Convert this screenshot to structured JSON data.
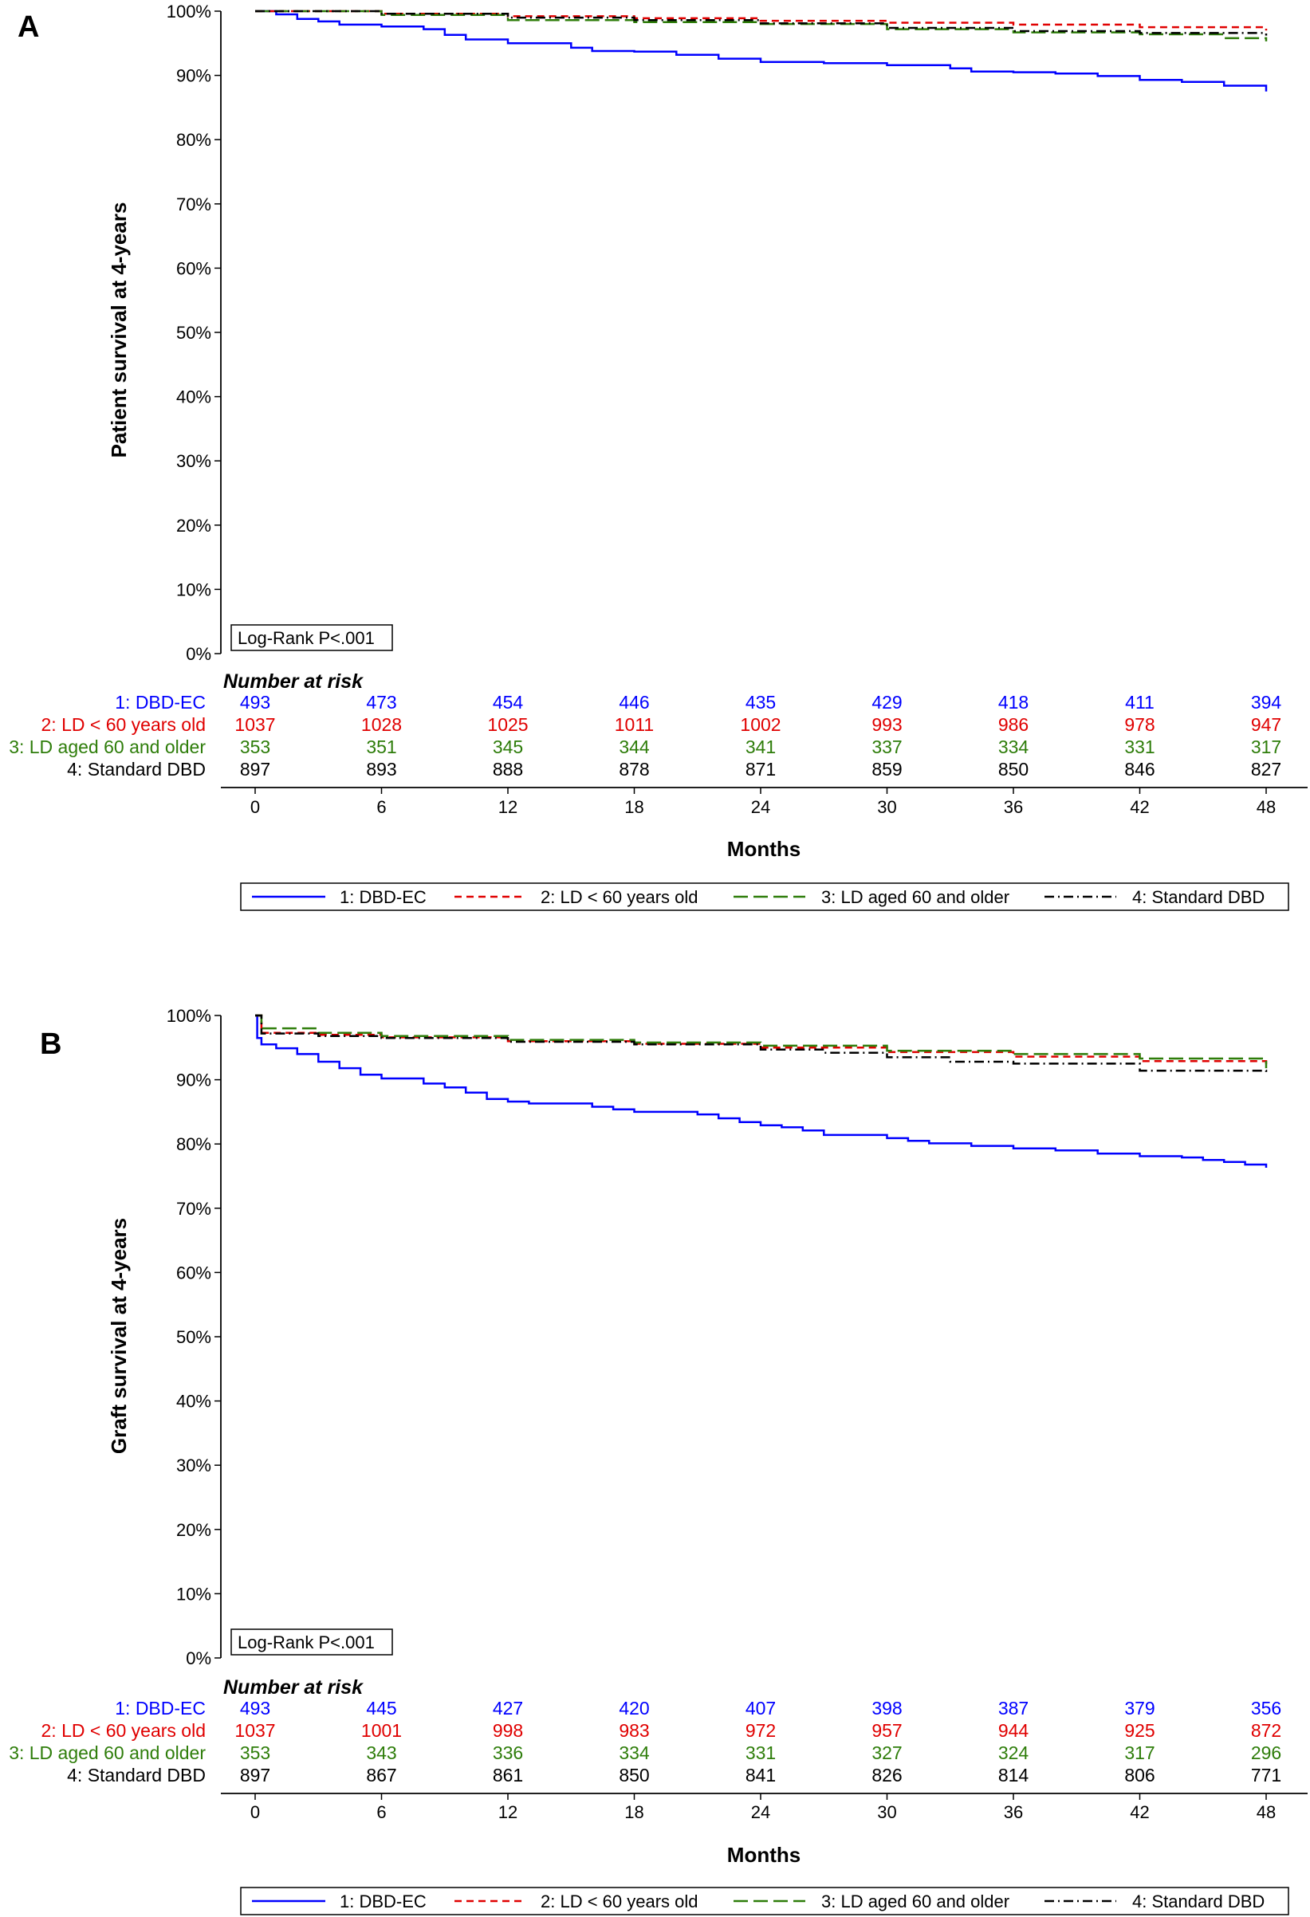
{
  "panels": [
    {
      "letter": "A",
      "ylabel": "Patient survival at 4-years",
      "xlabel": "Months",
      "logrank": "Log-Rank P<.001",
      "risk_title": "Number at risk",
      "legend_items": [
        "1: DBD-EC",
        "2: LD < 60 years old",
        "3: LD aged 60 and older",
        "4: Standard DBD"
      ]
    },
    {
      "letter": "B",
      "ylabel": "Graft survival at 4-years",
      "xlabel": "Months",
      "logrank": "Log-Rank P<.001",
      "risk_title": "Number at risk",
      "legend_items": [
        "1: DBD-EC",
        "2: LD < 60 years old",
        "3: LD aged 60 and older",
        "4: Standard DBD"
      ]
    }
  ],
  "chart_data": [
    {
      "type": "line",
      "title": "",
      "xlabel": "Months",
      "ylabel": "Patient survival at 4-years",
      "xlim": [
        0,
        48
      ],
      "ylim": [
        0,
        100
      ],
      "x_ticks": [
        0,
        6,
        12,
        18,
        24,
        30,
        36,
        42,
        48
      ],
      "y_ticks": [
        "0%",
        "10%",
        "20%",
        "30%",
        "40%",
        "50%",
        "60%",
        "70%",
        "80%",
        "90%",
        "100%"
      ],
      "grid": false,
      "legend_position": "bottom",
      "annotation": "Log-Rank P<.001",
      "series": [
        {
          "name": "1: DBD-EC",
          "color": "#0000ff",
          "style": "solid",
          "x": [
            0,
            1,
            2,
            3,
            4,
            6,
            8,
            9,
            10,
            12,
            14,
            15,
            16,
            18,
            20,
            22,
            24,
            27,
            30,
            33,
            34,
            36,
            38,
            40,
            42,
            44,
            46,
            48
          ],
          "y": [
            100,
            99.5,
            98.8,
            98.4,
            97.9,
            97.6,
            97.2,
            96.3,
            95.6,
            95.0,
            95.0,
            94.3,
            93.8,
            93.7,
            93.2,
            92.6,
            92.1,
            91.9,
            91.6,
            91.1,
            90.6,
            90.5,
            90.3,
            89.9,
            89.3,
            89.0,
            88.4,
            87.5
          ]
        },
        {
          "name": "2: LD < 60 years old",
          "color": "#e00000",
          "style": "dash",
          "x": [
            0,
            6,
            12,
            18,
            24,
            30,
            36,
            42,
            48
          ],
          "y": [
            100,
            99.6,
            99.2,
            98.9,
            98.5,
            98.2,
            97.9,
            97.5,
            97.0
          ]
        },
        {
          "name": "3: LD aged 60 and older",
          "color": "#2e7d0a",
          "style": "longdash",
          "x": [
            0,
            6,
            12,
            18,
            24,
            30,
            36,
            42,
            46,
            48
          ],
          "y": [
            100,
            99.4,
            98.6,
            98.3,
            98.0,
            97.2,
            96.7,
            96.4,
            95.8,
            95.3
          ]
        },
        {
          "name": "4: Standard DBD",
          "color": "#000000",
          "style": "dashdot",
          "x": [
            0,
            6,
            12,
            18,
            24,
            30,
            36,
            42,
            48
          ],
          "y": [
            100,
            99.6,
            99.0,
            98.6,
            98.1,
            97.4,
            96.9,
            96.6,
            96.2
          ]
        }
      ],
      "risk_table": {
        "title": "Number at risk",
        "times": [
          0,
          6,
          12,
          18,
          24,
          30,
          36,
          42,
          48
        ],
        "rows": [
          {
            "label": "1: DBD-EC",
            "color": "#0000ff",
            "values": [
              "493",
              "473",
              "454",
              "446",
              "435",
              "429",
              "418",
              "411",
              "394"
            ]
          },
          {
            "label": "2: LD < 60 years old",
            "color": "#e00000",
            "values": [
              "1037",
              "1028",
              "1025",
              "1011",
              "1002",
              "993",
              "986",
              "978",
              "947"
            ]
          },
          {
            "label": "3: LD aged 60 and older",
            "color": "#2e7d0a",
            "values": [
              "353",
              "351",
              "345",
              "344",
              "341",
              "337",
              "334",
              "331",
              "317"
            ]
          },
          {
            "label": "4: Standard DBD",
            "color": "#000000",
            "values": [
              "897",
              "893",
              "888",
              "878",
              "871",
              "859",
              "850",
              "846",
              "827"
            ]
          }
        ]
      }
    },
    {
      "type": "line",
      "title": "",
      "xlabel": "Months",
      "ylabel": "Graft survival at 4-years",
      "xlim": [
        0,
        48
      ],
      "ylim": [
        0,
        100
      ],
      "x_ticks": [
        0,
        6,
        12,
        18,
        24,
        30,
        36,
        42,
        48
      ],
      "y_ticks": [
        "0%",
        "10%",
        "20%",
        "30%",
        "40%",
        "50%",
        "60%",
        "70%",
        "80%",
        "90%",
        "100%"
      ],
      "grid": false,
      "legend_position": "bottom",
      "annotation": "Log-Rank P<.001",
      "series": [
        {
          "name": "1: DBD-EC",
          "color": "#0000ff",
          "style": "solid",
          "x": [
            0,
            0.1,
            0.3,
            1,
            2,
            3,
            4,
            5,
            6,
            8,
            9,
            10,
            11,
            12,
            13,
            15,
            16,
            17,
            18,
            21,
            22,
            23,
            24,
            25,
            26,
            27,
            30,
            31,
            32,
            34,
            36,
            38,
            40,
            42,
            44,
            45,
            46,
            47,
            48
          ],
          "y": [
            100,
            96.5,
            95.5,
            94.9,
            94.0,
            92.8,
            91.8,
            90.8,
            90.2,
            89.4,
            88.8,
            88.0,
            87.0,
            86.6,
            86.3,
            86.3,
            85.8,
            85.4,
            85.0,
            84.6,
            84.0,
            83.4,
            82.9,
            82.6,
            82.1,
            81.4,
            80.9,
            80.5,
            80.1,
            79.7,
            79.3,
            79.0,
            78.5,
            78.1,
            77.9,
            77.5,
            77.2,
            76.8,
            76.3
          ]
        },
        {
          "name": "2: LD < 60 years old",
          "color": "#e00000",
          "style": "dash",
          "x": [
            0,
            0.3,
            3,
            6,
            12,
            18,
            24,
            30,
            36,
            42,
            48
          ],
          "y": [
            100,
            97.3,
            97.0,
            96.6,
            96.0,
            95.6,
            95.0,
            94.3,
            93.6,
            92.9,
            92.0
          ]
        },
        {
          "name": "3: LD aged 60 and older",
          "color": "#2e7d0a",
          "style": "longdash",
          "x": [
            0,
            0.3,
            3,
            6,
            12,
            18,
            24,
            30,
            36,
            42,
            48
          ],
          "y": [
            100,
            98.0,
            97.3,
            96.8,
            96.2,
            95.8,
            95.3,
            94.5,
            94.0,
            93.3,
            91.8
          ]
        },
        {
          "name": "4: Standard DBD",
          "color": "#000000",
          "style": "dashdot",
          "x": [
            0,
            0.3,
            3,
            6,
            12,
            18,
            24,
            27,
            30,
            33,
            36,
            42,
            48
          ],
          "y": [
            100,
            97.2,
            96.8,
            96.5,
            95.9,
            95.5,
            94.7,
            94.2,
            93.5,
            92.8,
            92.5,
            91.4,
            91.2
          ]
        }
      ],
      "risk_table": {
        "title": "Number at risk",
        "times": [
          0,
          6,
          12,
          18,
          24,
          30,
          36,
          42,
          48
        ],
        "rows": [
          {
            "label": "1: DBD-EC",
            "color": "#0000ff",
            "values": [
              "493",
              "445",
              "427",
              "420",
              "407",
              "398",
              "387",
              "379",
              "356"
            ]
          },
          {
            "label": "2: LD < 60 years old",
            "color": "#e00000",
            "values": [
              "1037",
              "1001",
              "998",
              "983",
              "972",
              "957",
              "944",
              "925",
              "872"
            ]
          },
          {
            "label": "3: LD aged 60 and older",
            "color": "#2e7d0a",
            "values": [
              "353",
              "343",
              "336",
              "334",
              "331",
              "327",
              "324",
              "317",
              "296"
            ]
          },
          {
            "label": "4: Standard DBD",
            "color": "#000000",
            "values": [
              "897",
              "867",
              "861",
              "850",
              "841",
              "826",
              "814",
              "806",
              "771"
            ]
          }
        ]
      }
    }
  ]
}
